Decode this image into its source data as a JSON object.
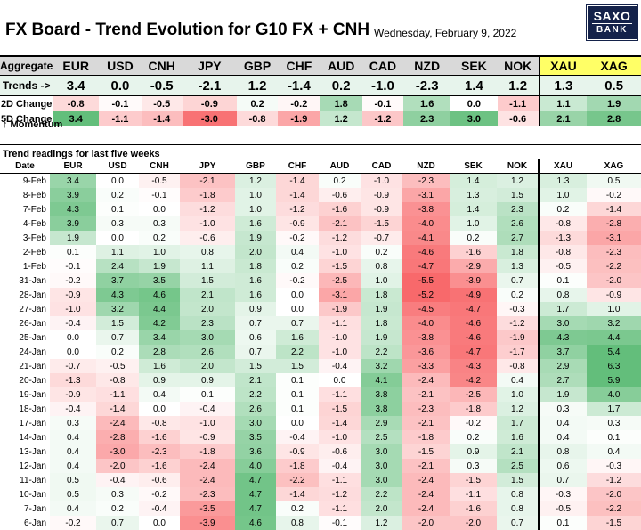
{
  "header": {
    "title": "FX Board - Trend Evolution for G10 FX + CNH",
    "date": "Wednesday, February 9, 2022",
    "logo_line1": "SAXO",
    "logo_line2": "BANK"
  },
  "colors": {
    "positive": "#63be7b",
    "negative": "#f8696b",
    "neutral": "#ffffff",
    "metal_header": "#ffff66",
    "header_fill": "#d9d9d9",
    "trends_fill": "#e7f4ec",
    "logo": "#14224a"
  },
  "chart_data": {
    "type": "table",
    "aggregate": {
      "corner_label": "Aggregate",
      "currencies": [
        "EUR",
        "USD",
        "CNH",
        "JPY",
        "GBP",
        "CHF",
        "AUD",
        "CAD",
        "NZD",
        "SEK",
        "NOK",
        "XAU",
        "XAG"
      ],
      "rows": [
        {
          "label": "Trends ->",
          "values": [
            "3.4",
            "0.0",
            "-0.5",
            "-2.1",
            "1.2",
            "-1.4",
            "0.2",
            "-1.0",
            "-2.3",
            "1.4",
            "1.2",
            "1.3",
            "0.5"
          ]
        },
        {
          "label": "2D Change",
          "values": [
            "-0.8",
            "-0.1",
            "-0.5",
            "-0.9",
            "0.2",
            "-0.2",
            "1.8",
            "-0.1",
            "1.6",
            "0.0",
            "-1.1",
            "1.1",
            "1.9"
          ]
        },
        {
          "label": "5D Change",
          "values": [
            "3.4",
            "-1.1",
            "-1.4",
            "-3.0",
            "-0.8",
            "-1.9",
            "1.2",
            "-1.2",
            "2.3",
            "3.0",
            "-0.6",
            "2.1",
            "2.8"
          ]
        }
      ],
      "momentum_label": "↑ Momentum"
    },
    "trends": {
      "title": "Trend readings for last five weeks",
      "columns": [
        "Date",
        "EUR",
        "USD",
        "CNH",
        "JPY",
        "GBP",
        "CHF",
        "AUD",
        "CAD",
        "NZD",
        "SEK",
        "NOK",
        "XAU",
        "XAG"
      ],
      "rows": [
        [
          "9-Feb",
          "3.4",
          "0.0",
          "-0.5",
          "-2.1",
          "1.2",
          "-1.4",
          "0.2",
          "-1.0",
          "-2.3",
          "1.4",
          "1.2",
          "1.3",
          "0.5"
        ],
        [
          "8-Feb",
          "3.9",
          "0.2",
          "-0.1",
          "-1.8",
          "1.0",
          "-1.4",
          "-0.6",
          "-0.9",
          "-3.1",
          "1.3",
          "1.5",
          "1.0",
          "-0.2"
        ],
        [
          "7-Feb",
          "4.3",
          "0.1",
          "0.0",
          "-1.2",
          "1.0",
          "-1.2",
          "-1.6",
          "-0.9",
          "-3.8",
          "1.4",
          "2.3",
          "0.2",
          "-1.4"
        ],
        [
          "4-Feb",
          "3.9",
          "0.3",
          "0.3",
          "-1.0",
          "1.6",
          "-0.9",
          "-2.1",
          "-1.5",
          "-4.0",
          "1.0",
          "2.6",
          "-0.8",
          "-2.8"
        ],
        [
          "3-Feb",
          "1.9",
          "0.0",
          "0.2",
          "-0.6",
          "1.9",
          "-0.2",
          "-1.2",
          "-0.7",
          "-4.1",
          "0.2",
          "2.7",
          "-1.3",
          "-3.1"
        ],
        [
          "2-Feb",
          "0.1",
          "1.1",
          "1.0",
          "0.8",
          "2.0",
          "0.4",
          "-1.0",
          "0.2",
          "-4.6",
          "-1.6",
          "1.8",
          "-0.8",
          "-2.3"
        ],
        [
          "1-Feb",
          "-0.1",
          "2.4",
          "1.9",
          "1.1",
          "1.8",
          "0.2",
          "-1.5",
          "0.8",
          "-4.7",
          "-2.9",
          "1.3",
          "-0.5",
          "-2.2"
        ],
        [
          "31-Jan",
          "-0.2",
          "3.7",
          "3.5",
          "1.5",
          "1.6",
          "-0.2",
          "-2.5",
          "1.0",
          "-5.5",
          "-3.9",
          "0.7",
          "0.1",
          "-2.0"
        ],
        [
          "28-Jan",
          "-0.9",
          "4.3",
          "4.6",
          "2.1",
          "1.6",
          "0.0",
          "-3.1",
          "1.8",
          "-5.2",
          "-4.9",
          "0.2",
          "0.8",
          "-0.9"
        ],
        [
          "27-Jan",
          "-1.0",
          "3.2",
          "4.4",
          "2.0",
          "0.9",
          "0.0",
          "-1.9",
          "1.9",
          "-4.5",
          "-4.7",
          "-0.3",
          "1.7",
          "1.0"
        ],
        [
          "26-Jan",
          "-0.4",
          "1.5",
          "4.2",
          "2.3",
          "0.7",
          "0.7",
          "-1.1",
          "1.8",
          "-4.0",
          "-4.6",
          "-1.2",
          "3.0",
          "3.2"
        ],
        [
          "25-Jan",
          "0.0",
          "0.7",
          "3.4",
          "3.0",
          "0.6",
          "1.6",
          "-1.0",
          "1.9",
          "-3.8",
          "-4.6",
          "-1.9",
          "4.3",
          "4.4"
        ],
        [
          "24-Jan",
          "0.0",
          "0.2",
          "2.8",
          "2.6",
          "0.7",
          "2.2",
          "-1.0",
          "2.2",
          "-3.6",
          "-4.7",
          "-1.7",
          "3.7",
          "5.4"
        ],
        [
          "21-Jan",
          "-0.7",
          "-0.5",
          "1.6",
          "2.0",
          "1.5",
          "1.5",
          "-0.4",
          "3.2",
          "-3.3",
          "-4.3",
          "-0.8",
          "2.9",
          "6.3"
        ],
        [
          "20-Jan",
          "-1.3",
          "-0.8",
          "0.9",
          "0.9",
          "2.1",
          "0.1",
          "0.0",
          "4.1",
          "-2.4",
          "-4.2",
          "0.4",
          "2.7",
          "5.9"
        ],
        [
          "19-Jan",
          "-0.9",
          "-1.1",
          "0.4",
          "0.1",
          "2.2",
          "0.1",
          "-1.1",
          "3.8",
          "-2.1",
          "-2.5",
          "1.0",
          "1.9",
          "4.0"
        ],
        [
          "18-Jan",
          "-0.4",
          "-1.4",
          "0.0",
          "-0.4",
          "2.6",
          "0.1",
          "-1.5",
          "3.8",
          "-2.3",
          "-1.8",
          "1.2",
          "0.3",
          "1.7"
        ],
        [
          "17-Jan",
          "0.3",
          "-2.4",
          "-0.8",
          "-1.0",
          "3.0",
          "0.0",
          "-1.4",
          "2.9",
          "-2.1",
          "-0.2",
          "1.7",
          "0.4",
          "0.3"
        ],
        [
          "14-Jan",
          "0.4",
          "-2.8",
          "-1.6",
          "-0.9",
          "3.5",
          "-0.4",
          "-1.0",
          "2.5",
          "-1.8",
          "0.2",
          "1.6",
          "0.4",
          "0.1"
        ],
        [
          "13-Jan",
          "0.4",
          "-3.0",
          "-2.3",
          "-1.8",
          "3.6",
          "-0.9",
          "-0.6",
          "3.0",
          "-1.5",
          "0.9",
          "2.1",
          "0.8",
          "0.4"
        ],
        [
          "12-Jan",
          "0.4",
          "-2.0",
          "-1.6",
          "-2.4",
          "4.0",
          "-1.8",
          "-0.4",
          "3.0",
          "-2.1",
          "0.3",
          "2.5",
          "0.6",
          "-0.3"
        ],
        [
          "11-Jan",
          "0.5",
          "-0.4",
          "-0.6",
          "-2.4",
          "4.7",
          "-2.2",
          "-1.1",
          "3.0",
          "-2.4",
          "-1.5",
          "1.5",
          "0.7",
          "-1.2"
        ],
        [
          "10-Jan",
          "0.5",
          "0.3",
          "-0.2",
          "-2.3",
          "4.7",
          "-1.4",
          "-1.2",
          "2.2",
          "-2.4",
          "-1.1",
          "0.8",
          "-0.3",
          "-2.0"
        ],
        [
          "7-Jan",
          "0.4",
          "0.2",
          "-0.4",
          "-3.5",
          "4.7",
          "0.2",
          "-1.1",
          "2.0",
          "-2.4",
          "-1.6",
          "0.8",
          "-0.5",
          "-2.2"
        ],
        [
          "6-Jan",
          "-0.2",
          "0.7",
          "0.0",
          "-3.9",
          "4.6",
          "0.8",
          "-0.1",
          "1.2",
          "-2.0",
          "-2.0",
          "0.7",
          "0.1",
          "-1.5"
        ]
      ]
    }
  }
}
